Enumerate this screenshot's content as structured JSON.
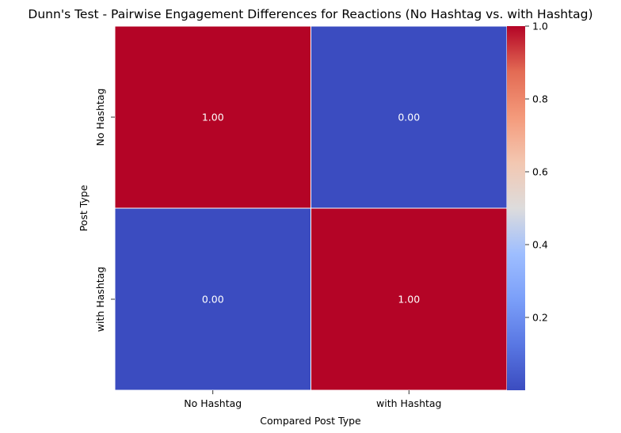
{
  "chart_data": {
    "type": "heatmap",
    "title": "Dunn's Test - Pairwise Engagement Differences for Reactions (No Hashtag vs. with Hashtag)",
    "xlabel": "Compared Post Type",
    "ylabel": "Post Type",
    "x_categories": [
      "No Hashtag",
      "with Hashtag"
    ],
    "y_categories": [
      "No Hashtag",
      "with Hashtag"
    ],
    "matrix": [
      [
        "1.00",
        "0.00"
      ],
      [
        "0.00",
        "1.00"
      ]
    ],
    "values": [
      [
        1.0,
        0.0
      ],
      [
        0.0,
        1.0
      ]
    ],
    "colormap": "coolwarm",
    "color_low": "#3b4cc0",
    "color_high": "#b40426",
    "colorbar_range": [
      0.0,
      1.0
    ],
    "colorbar_ticks": [
      "0.2",
      "0.4",
      "0.6",
      "0.8",
      "1.0"
    ],
    "cell_border_color": "#ffffff",
    "annotation_color": "#ffffff"
  }
}
